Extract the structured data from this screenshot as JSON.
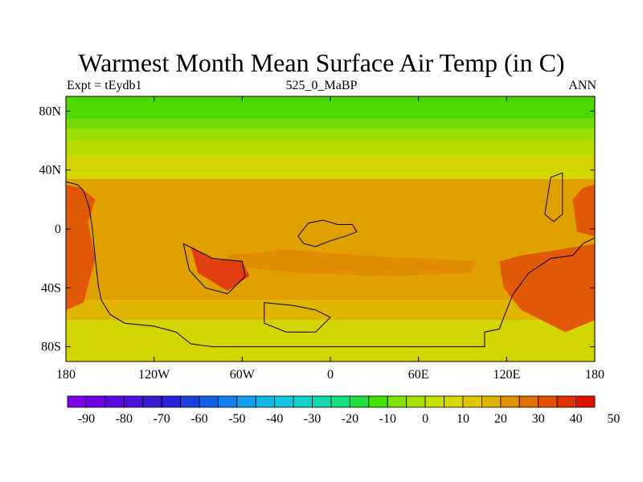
{
  "header": {
    "title": "Warmest Month Mean Surface Air Temp (in C)",
    "left": "Expt = tEydb1",
    "center": "525_0_MaBP",
    "right": "ANN"
  },
  "axes": {
    "lat_ticks": [
      {
        "value": 80,
        "label": "80N"
      },
      {
        "value": 40,
        "label": "40N"
      },
      {
        "value": 0,
        "label": "0"
      },
      {
        "value": -40,
        "label": "40S"
      },
      {
        "value": -80,
        "label": "80S"
      }
    ],
    "lon_ticks": [
      {
        "value": -180,
        "label": "180"
      },
      {
        "value": -120,
        "label": "120W"
      },
      {
        "value": -60,
        "label": "60W"
      },
      {
        "value": 0,
        "label": "0"
      },
      {
        "value": 60,
        "label": "60E"
      },
      {
        "value": 120,
        "label": "120E"
      },
      {
        "value": 180,
        "label": "180"
      }
    ],
    "lon_range": [
      -180,
      180
    ],
    "lat_range": [
      -90,
      90
    ]
  },
  "colorbar": {
    "colors": [
      "#7a00e6",
      "#6a00e6",
      "#5a08e0",
      "#4a10dc",
      "#3a18d8",
      "#2a20d8",
      "#1a40e0",
      "#1060e8",
      "#1080f0",
      "#10a0f0",
      "#10b8e8",
      "#10c8e0",
      "#10d0c8",
      "#10d8a8",
      "#10e080",
      "#20e040",
      "#40e000",
      "#80e000",
      "#a8e000",
      "#c8e000",
      "#d8d800",
      "#e0c800",
      "#e0b000",
      "#e09000",
      "#e07000",
      "#e05000",
      "#e03000",
      "#e01000"
    ],
    "labels": [
      {
        "value": -90,
        "label": "-90"
      },
      {
        "value": -80,
        "label": "-80"
      },
      {
        "value": -70,
        "label": "-70"
      },
      {
        "value": -60,
        "label": "-60"
      },
      {
        "value": -50,
        "label": "-50"
      },
      {
        "value": -40,
        "label": "-40"
      },
      {
        "value": -30,
        "label": "-30"
      },
      {
        "value": -20,
        "label": "-20"
      },
      {
        "value": -10,
        "label": "-10"
      },
      {
        "value": 0,
        "label": "0"
      },
      {
        "value": 10,
        "label": "10"
      },
      {
        "value": 20,
        "label": "20"
      },
      {
        "value": 30,
        "label": "30"
      },
      {
        "value": 40,
        "label": "40"
      },
      {
        "value": 50,
        "label": "50"
      }
    ]
  },
  "field": {
    "zonal_bands": [
      {
        "lat": [
          75,
          90
        ],
        "color": "#4cd800"
      },
      {
        "lat": [
          68,
          75
        ],
        "color": "#74dc00"
      },
      {
        "lat": [
          60,
          68
        ],
        "color": "#98e000"
      },
      {
        "lat": [
          50,
          60
        ],
        "color": "#b8dc00"
      },
      {
        "lat": [
          34,
          50
        ],
        "color": "#d4d400"
      },
      {
        "lat": [
          -48,
          34
        ],
        "color": "#e0a000"
      },
      {
        "lat": [
          -62,
          -48
        ],
        "color": "#e0b400"
      },
      {
        "lat": [
          -90,
          -62
        ],
        "color": "#d4d400"
      }
    ],
    "warm_regions": [
      {
        "name": "tropical-warm-tongue",
        "color": "#e08c00",
        "points": [
          [
            -70,
            -18
          ],
          [
            -30,
            -14
          ],
          [
            20,
            -18
          ],
          [
            60,
            -20
          ],
          [
            100,
            -22
          ],
          [
            95,
            -30
          ],
          [
            40,
            -32
          ],
          [
            -20,
            -30
          ],
          [
            -70,
            -25
          ]
        ]
      },
      {
        "name": "west-coast-warm",
        "color": "#e05808",
        "points": [
          [
            -180,
            30
          ],
          [
            -170,
            28
          ],
          [
            -160,
            20
          ],
          [
            -165,
            5
          ],
          [
            -160,
            -20
          ],
          [
            -168,
            -50
          ],
          [
            -180,
            -55
          ]
        ]
      },
      {
        "name": "east-continent-warm",
        "color": "#e05808",
        "points": [
          [
            115,
            -22
          ],
          [
            130,
            -18
          ],
          [
            150,
            -15
          ],
          [
            180,
            -10
          ],
          [
            180,
            -62
          ],
          [
            160,
            -70
          ],
          [
            130,
            -55
          ],
          [
            118,
            -40
          ]
        ]
      },
      {
        "name": "east-rim-warm",
        "color": "#e05808",
        "points": [
          [
            165,
            20
          ],
          [
            172,
            28
          ],
          [
            180,
            30
          ],
          [
            180,
            -5
          ],
          [
            168,
            -2
          ]
        ]
      },
      {
        "name": "inland-warm",
        "color": "#e04010",
        "points": [
          [
            -95,
            -12
          ],
          [
            -80,
            -20
          ],
          [
            -60,
            -22
          ],
          [
            -55,
            -32
          ],
          [
            -70,
            -42
          ],
          [
            -90,
            -30
          ]
        ]
      }
    ],
    "coastlines": [
      {
        "name": "west-continent",
        "points": [
          [
            -180,
            32
          ],
          [
            -172,
            30
          ],
          [
            -168,
            26
          ],
          [
            -164,
            14
          ],
          [
            -162,
            0
          ],
          [
            -160,
            -20
          ],
          [
            -158,
            -38
          ],
          [
            -156,
            -48
          ],
          [
            -150,
            -58
          ],
          [
            -140,
            -64
          ],
          [
            -120,
            -66
          ],
          [
            -105,
            -70
          ],
          [
            -95,
            -78
          ],
          [
            -80,
            -80
          ],
          [
            -10,
            -80
          ],
          [
            105,
            -80
          ],
          [
            105,
            -70
          ],
          [
            115,
            -68
          ],
          [
            120,
            -55
          ],
          [
            124,
            -45
          ],
          [
            135,
            -30
          ],
          [
            150,
            -20
          ],
          [
            165,
            -18
          ],
          [
            172,
            -10
          ],
          [
            180,
            -6
          ]
        ]
      },
      {
        "name": "central-island",
        "points": [
          [
            -15,
            4
          ],
          [
            -5,
            6
          ],
          [
            5,
            3
          ],
          [
            15,
            3
          ],
          [
            18,
            -2
          ],
          [
            10,
            -5
          ],
          [
            0,
            -8
          ],
          [
            -10,
            -12
          ],
          [
            -18,
            -10
          ],
          [
            -22,
            -5
          ]
        ]
      },
      {
        "name": "inner-lake",
        "points": [
          [
            -100,
            -10
          ],
          [
            -80,
            -20
          ],
          [
            -60,
            -22
          ],
          [
            -58,
            -32
          ],
          [
            -70,
            -44
          ],
          [
            -85,
            -40
          ],
          [
            -96,
            -28
          ]
        ]
      },
      {
        "name": "southern-island",
        "points": [
          [
            -45,
            -50
          ],
          [
            -25,
            -52
          ],
          [
            -10,
            -55
          ],
          [
            0,
            -60
          ],
          [
            -10,
            -70
          ],
          [
            -30,
            -70
          ],
          [
            -45,
            -64
          ]
        ]
      },
      {
        "name": "eastern-island",
        "points": [
          [
            150,
            35
          ],
          [
            158,
            38
          ],
          [
            158,
            10
          ],
          [
            152,
            5
          ],
          [
            146,
            10
          ]
        ]
      }
    ]
  }
}
